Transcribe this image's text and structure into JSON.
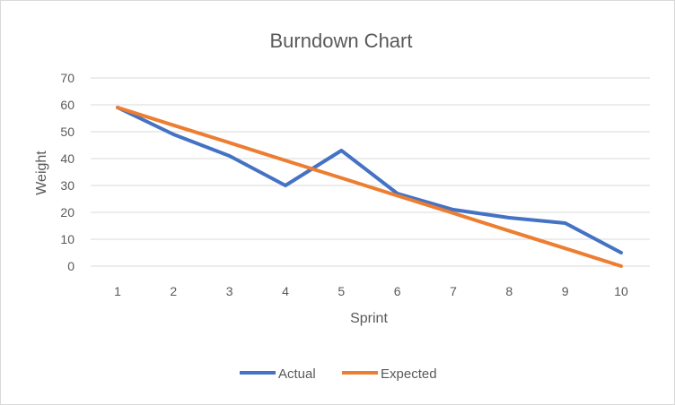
{
  "chart_data": {
    "type": "line",
    "title": "Burndown Chart",
    "xlabel": "Sprint",
    "ylabel": "Weight",
    "x": [
      1,
      2,
      3,
      4,
      5,
      6,
      7,
      8,
      9,
      10
    ],
    "x_tick_labels": [
      "1",
      "2",
      "3",
      "4",
      "5",
      "6",
      "7",
      "8",
      "9",
      "10"
    ],
    "ylim": [
      0,
      70
    ],
    "y_ticks": [
      0,
      10,
      20,
      30,
      40,
      50,
      60,
      70
    ],
    "y_tick_labels": [
      "0",
      "10",
      "20",
      "30",
      "40",
      "50",
      "60",
      "70"
    ],
    "grid": "horizontal",
    "legend": "bottom",
    "series": [
      {
        "name": "Actual",
        "color": "#4472c4",
        "values": [
          59,
          49,
          41,
          30,
          43,
          27,
          21,
          18,
          16,
          5
        ]
      },
      {
        "name": "Expected",
        "color": "#ed7d31",
        "values": [
          59,
          52.4,
          45.9,
          39.3,
          32.8,
          26.2,
          19.7,
          13.1,
          6.6,
          0
        ]
      }
    ]
  }
}
